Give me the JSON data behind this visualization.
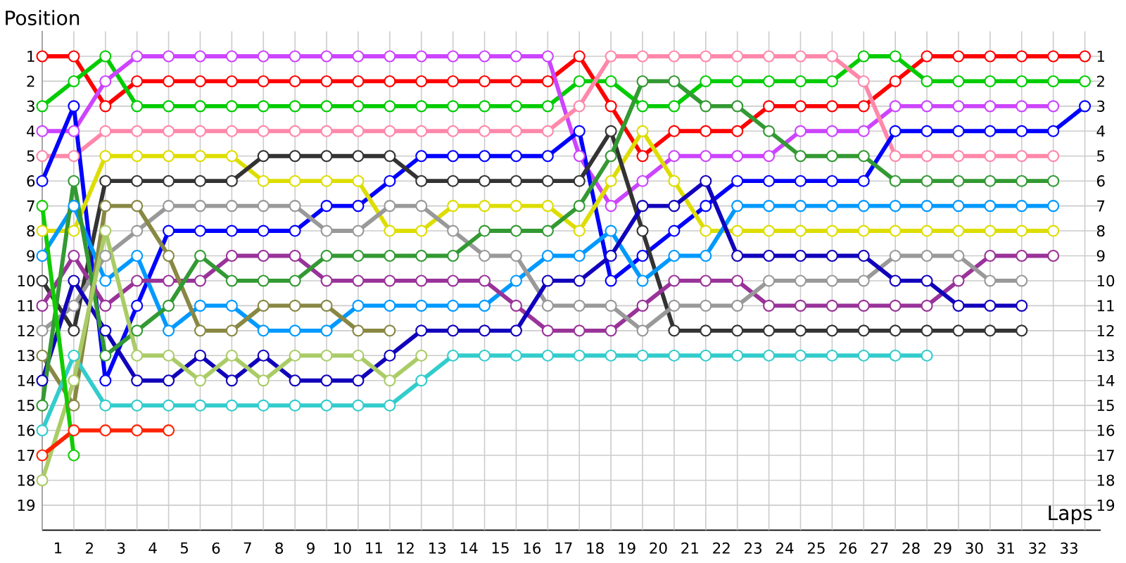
{
  "chart_data": {
    "type": "line",
    "xlabel": "Laps",
    "ylabel": "Position",
    "x": [
      0,
      1,
      2,
      3,
      4,
      5,
      6,
      7,
      8,
      9,
      10,
      11,
      12,
      13,
      14,
      15,
      16,
      17,
      18,
      19,
      20,
      21,
      22,
      23,
      24,
      25,
      26,
      27,
      28,
      29,
      30,
      31,
      32,
      33
    ],
    "xlim": [
      0,
      33.5
    ],
    "xticks": [
      {
        "value": 0.5,
        "label": "1"
      },
      {
        "value": 1.5,
        "label": "2"
      },
      {
        "value": 2.5,
        "label": "3"
      },
      {
        "value": 3.5,
        "label": "4"
      },
      {
        "value": 4.5,
        "label": "5"
      },
      {
        "value": 5.5,
        "label": "6"
      },
      {
        "value": 6.5,
        "label": "7"
      },
      {
        "value": 7.5,
        "label": "8"
      },
      {
        "value": 8.5,
        "label": "9"
      },
      {
        "value": 9.5,
        "label": "10"
      },
      {
        "value": 10.5,
        "label": "11"
      },
      {
        "value": 11.5,
        "label": "12"
      },
      {
        "value": 12.5,
        "label": "13"
      },
      {
        "value": 13.5,
        "label": "14"
      },
      {
        "value": 14.5,
        "label": "15"
      },
      {
        "value": 15.5,
        "label": "16"
      },
      {
        "value": 16.5,
        "label": "17"
      },
      {
        "value": 17.5,
        "label": "18"
      },
      {
        "value": 18.5,
        "label": "19"
      },
      {
        "value": 19.5,
        "label": "20"
      },
      {
        "value": 20.5,
        "label": "21"
      },
      {
        "value": 21.5,
        "label": "22"
      },
      {
        "value": 22.5,
        "label": "23"
      },
      {
        "value": 23.5,
        "label": "24"
      },
      {
        "value": 24.5,
        "label": "25"
      },
      {
        "value": 25.5,
        "label": "26"
      },
      {
        "value": 26.5,
        "label": "27"
      },
      {
        "value": 27.5,
        "label": "28"
      },
      {
        "value": 28.5,
        "label": "29"
      },
      {
        "value": 29.5,
        "label": "30"
      },
      {
        "value": 30.5,
        "label": "31"
      },
      {
        "value": 31.5,
        "label": "32"
      },
      {
        "value": 32.5,
        "label": "33"
      },
      {
        "value": 0,
        "label": null
      },
      {
        "value": 1,
        "label": null
      },
      {
        "value": 2,
        "label": null
      },
      {
        "value": 3,
        "label": null
      },
      {
        "value": 4,
        "label": null
      },
      {
        "value": 5,
        "label": null
      },
      {
        "value": 6,
        "label": null
      },
      {
        "value": 7,
        "label": null
      },
      {
        "value": 8,
        "label": null
      },
      {
        "value": 9,
        "label": null
      },
      {
        "value": 10,
        "label": null
      },
      {
        "value": 11,
        "label": null
      },
      {
        "value": 12,
        "label": null
      },
      {
        "value": 13,
        "label": null
      },
      {
        "value": 14,
        "label": null
      },
      {
        "value": 15,
        "label": null
      },
      {
        "value": 16,
        "label": null
      },
      {
        "value": 17,
        "label": null
      },
      {
        "value": 18,
        "label": null
      },
      {
        "value": 19,
        "label": null
      },
      {
        "value": 20,
        "label": null
      },
      {
        "value": 21,
        "label": null
      },
      {
        "value": 22,
        "label": null
      },
      {
        "value": 23,
        "label": null
      },
      {
        "value": 24,
        "label": null
      },
      {
        "value": 25,
        "label": null
      },
      {
        "value": 26,
        "label": null
      },
      {
        "value": 27,
        "label": null
      },
      {
        "value": 28,
        "label": null
      },
      {
        "value": 29,
        "label": null
      },
      {
        "value": 30,
        "label": null
      },
      {
        "value": 31,
        "label": null
      },
      {
        "value": 32,
        "label": null
      },
      {
        "value": 33,
        "label": null
      }
    ],
    "ylim": [
      20,
      0
    ],
    "yticks": [
      1,
      2,
      3,
      4,
      5,
      6,
      7,
      8,
      9,
      10,
      11,
      12,
      13,
      14,
      15,
      16,
      17,
      18,
      19
    ],
    "y2lim": [
      20,
      0
    ],
    "y2ticks": [
      1,
      2,
      3,
      4,
      5,
      6,
      7,
      8,
      9,
      10,
      11,
      12,
      13,
      14,
      15,
      16,
      17,
      18,
      19
    ],
    "grid": true,
    "marker": "circle",
    "line_style": "solid",
    "series": [
      {
        "color": "#ff0000",
        "values": [
          1,
          1,
          3,
          2,
          2,
          2,
          2,
          2,
          2,
          2,
          2,
          2,
          2,
          2,
          2,
          2,
          2,
          1,
          3,
          5,
          4,
          4,
          4,
          3,
          3,
          3,
          3,
          2,
          1,
          1,
          1,
          1,
          1,
          1
        ]
      },
      {
        "color": "#00cc00",
        "values": [
          3,
          2,
          1,
          3,
          3,
          3,
          3,
          3,
          3,
          3,
          3,
          3,
          3,
          3,
          3,
          3,
          3,
          2,
          2,
          3,
          3,
          2,
          2,
          2,
          2,
          2,
          1,
          1,
          2,
          2,
          2,
          2,
          2,
          2
        ]
      },
      {
        "color": "#cc44ff",
        "values": [
          4,
          4,
          2,
          1,
          1,
          1,
          1,
          1,
          1,
          1,
          1,
          1,
          1,
          1,
          1,
          1,
          1,
          5,
          7,
          6,
          5,
          5,
          5,
          5,
          4,
          4,
          4,
          3,
          3,
          3,
          3,
          3,
          3,
          null
        ]
      },
      {
        "color": "#ff88aa",
        "values": [
          5,
          5,
          4,
          4,
          4,
          4,
          4,
          4,
          4,
          4,
          4,
          4,
          4,
          4,
          4,
          4,
          4,
          3,
          1,
          1,
          1,
          1,
          1,
          1,
          1,
          1,
          2,
          5,
          5,
          5,
          5,
          5,
          5,
          null
        ]
      },
      {
        "color": "#0000ff",
        "values": [
          6,
          3,
          14,
          11,
          8,
          8,
          8,
          8,
          8,
          7,
          7,
          6,
          5,
          5,
          5,
          5,
          5,
          4,
          10,
          9,
          8,
          7,
          6,
          6,
          6,
          6,
          6,
          4,
          4,
          4,
          4,
          4,
          4,
          3
        ]
      },
      {
        "color": "#dddd00",
        "values": [
          8,
          8,
          5,
          5,
          5,
          5,
          5,
          6,
          6,
          6,
          6,
          8,
          8,
          7,
          7,
          7,
          7,
          8,
          6,
          4,
          6,
          8,
          8,
          8,
          8,
          8,
          8,
          8,
          8,
          8,
          8,
          8,
          8,
          null
        ]
      },
      {
        "color": "#333333",
        "values": [
          10,
          12,
          6,
          6,
          6,
          6,
          6,
          5,
          5,
          5,
          5,
          5,
          6,
          6,
          6,
          6,
          6,
          6,
          4,
          8,
          12,
          12,
          12,
          12,
          12,
          12,
          12,
          12,
          12,
          12,
          12,
          12,
          null,
          null
        ]
      },
      {
        "color": "#0099ff",
        "values": [
          9,
          7,
          10,
          9,
          12,
          11,
          11,
          12,
          12,
          12,
          11,
          11,
          11,
          11,
          11,
          10,
          9,
          9,
          8,
          10,
          9,
          9,
          7,
          7,
          7,
          7,
          7,
          7,
          7,
          7,
          7,
          7,
          7,
          null
        ]
      },
      {
        "color": "#993399",
        "values": [
          11,
          9,
          11,
          10,
          10,
          10,
          9,
          9,
          9,
          10,
          10,
          10,
          10,
          10,
          10,
          11,
          12,
          12,
          12,
          11,
          10,
          10,
          10,
          11,
          11,
          11,
          11,
          11,
          11,
          10,
          9,
          9,
          9,
          null
        ]
      },
      {
        "color": "#999999",
        "values": [
          12,
          11,
          9,
          8,
          7,
          7,
          7,
          7,
          7,
          8,
          8,
          7,
          7,
          8,
          9,
          9,
          11,
          11,
          11,
          12,
          11,
          11,
          11,
          10,
          10,
          10,
          10,
          9,
          9,
          9,
          10,
          10,
          null,
          null
        ]
      },
      {
        "color": "#888844",
        "values": [
          13,
          15,
          7,
          7,
          9,
          12,
          12,
          11,
          11,
          11,
          12,
          12,
          null,
          null,
          null,
          null,
          null,
          null,
          null,
          null,
          null,
          null,
          null,
          null,
          null,
          null,
          null,
          null,
          null,
          null,
          null,
          null,
          null,
          null
        ]
      },
      {
        "color": "#1100bb",
        "values": [
          14,
          10,
          12,
          14,
          14,
          13,
          14,
          13,
          14,
          14,
          14,
          13,
          12,
          12,
          12,
          12,
          10,
          10,
          9,
          7,
          7,
          6,
          9,
          9,
          9,
          9,
          9,
          10,
          10,
          11,
          11,
          11,
          null,
          null
        ]
      },
      {
        "color": "#339933",
        "values": [
          15,
          6,
          13,
          12,
          11,
          9,
          10,
          10,
          10,
          9,
          9,
          9,
          9,
          9,
          8,
          8,
          8,
          7,
          5,
          2,
          2,
          3,
          3,
          4,
          5,
          5,
          5,
          6,
          6,
          6,
          6,
          6,
          6,
          null
        ]
      },
      {
        "color": "#33cccc",
        "values": [
          16,
          13,
          15,
          15,
          15,
          15,
          15,
          15,
          15,
          15,
          15,
          15,
          14,
          13,
          13,
          13,
          13,
          13,
          13,
          13,
          13,
          13,
          13,
          13,
          13,
          13,
          13,
          13,
          13,
          null,
          null,
          null,
          null,
          null
        ]
      },
      {
        "color": "#aacc66",
        "values": [
          18,
          14,
          8,
          13,
          13,
          14,
          13,
          14,
          13,
          13,
          13,
          14,
          13,
          null,
          null,
          null,
          null,
          null,
          null,
          null,
          null,
          null,
          null,
          null,
          null,
          null,
          null,
          null,
          null,
          null,
          null,
          null,
          null,
          null
        ]
      },
      {
        "color": "#ff2200",
        "values": [
          17,
          16,
          16,
          16,
          16,
          null,
          null,
          null,
          null,
          null,
          null,
          null,
          null,
          null,
          null,
          null,
          null,
          null,
          null,
          null,
          null,
          null,
          null,
          null,
          null,
          null,
          null,
          null,
          null,
          null,
          null,
          null,
          null,
          null
        ]
      },
      {
        "color": "#11cc00",
        "values": [
          7,
          17,
          null,
          null,
          null,
          null,
          null,
          null,
          null,
          null,
          null,
          null,
          null,
          null,
          null,
          null,
          null,
          null,
          null,
          null,
          null,
          null,
          null,
          null,
          null,
          null,
          null,
          null,
          null,
          null,
          null,
          null,
          null,
          null
        ]
      }
    ]
  }
}
